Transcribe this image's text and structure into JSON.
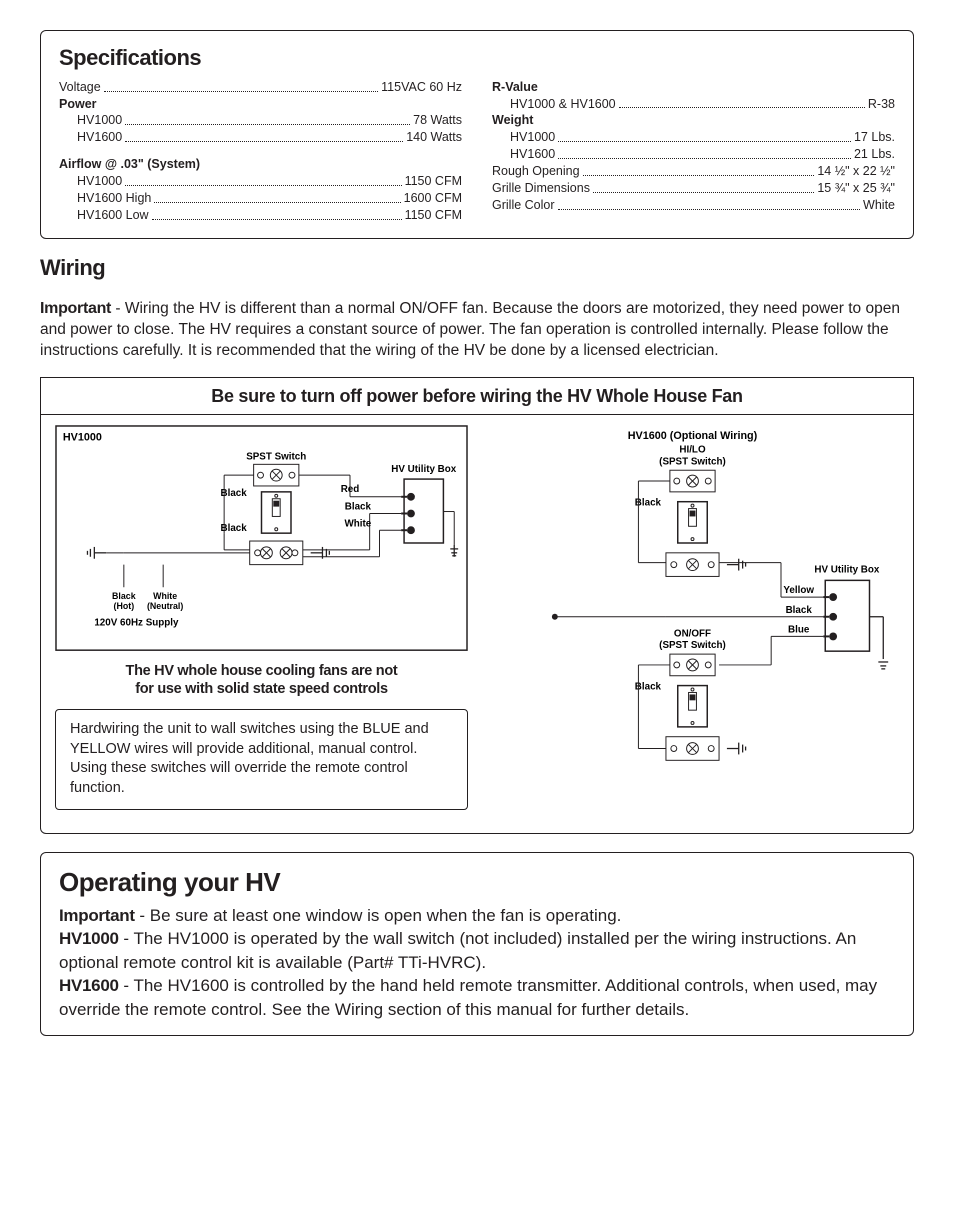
{
  "spec": {
    "title": "Specifications",
    "left": [
      {
        "k": "Voltage",
        "v": "115VAC 60 Hz",
        "bold": false
      },
      {
        "k": "Power",
        "v": "",
        "bold": true,
        "nodots": true
      },
      {
        "k": "HV1000",
        "v": "78 Watts",
        "indent": true
      },
      {
        "k": "HV1600",
        "v": "140 Watts",
        "indent": true
      },
      {
        "k": "",
        "v": "",
        "spacer": true
      },
      {
        "k": "Airflow @ .03\" (System)",
        "v": "",
        "bold": true,
        "nodots": true
      },
      {
        "k": "HV1000",
        "v": "1150 CFM",
        "indent": true
      },
      {
        "k": "HV1600 High",
        "v": "1600 CFM",
        "indent": true
      },
      {
        "k": "HV1600 Low",
        "v": "1150 CFM",
        "indent": true
      }
    ],
    "right": [
      {
        "k": "R-Value",
        "v": "",
        "bold": true,
        "nodots": true
      },
      {
        "k": "HV1000 & HV1600",
        "v": "R-38",
        "indent": true
      },
      {
        "k": "Weight",
        "v": "",
        "bold": true,
        "nodots": true
      },
      {
        "k": "HV1000",
        "v": "17 Lbs.",
        "indent": true
      },
      {
        "k": "HV1600",
        "v": "21 Lbs.",
        "indent": true
      },
      {
        "k": "Rough Opening",
        "v": "14 ½\" x 22 ½\""
      },
      {
        "k": "Grille Dimensions",
        "v": "15 ¾\" x 25 ¾\""
      },
      {
        "k": "Grille Color",
        "v": "White"
      }
    ]
  },
  "wiring": {
    "title": "Wiring",
    "lead": "Important",
    "body": " - Wiring the HV is different than a normal ON/OFF fan. Because the doors are motorized, they need power to open and power to close.   The HV requires a constant source of power. The fan operation is controlled internally. Please follow the instructions carefully.  It is recommended that the wiring of the HV be done by a licensed electrician."
  },
  "banner": "Be sure to turn off power before wiring the HV Whole House Fan",
  "dia1": {
    "title": "HV1000",
    "spst": "SPST Switch",
    "util": "HV Utility Box",
    "red": "Red",
    "black": "Black",
    "white": "White",
    "hot": "Black\n(Hot)",
    "neutral": "White\n(Neutral)",
    "supply": "120V 60Hz Supply",
    "black1": "Black",
    "black2": "Black"
  },
  "dia2": {
    "title": "HV1600 (Optional Wiring)",
    "hilo": "HI/LO\n(SPST Switch)",
    "onoff": "ON/OFF\n(SPST Switch)",
    "util": "HV Utility Box",
    "yellow": "Yellow",
    "black": "Black",
    "blue": "Blue",
    "b1": "Black",
    "b2": "Black"
  },
  "note_nosolid_a": "The HV whole house cooling fans are not",
  "note_nosolid_b": "for use with solid state speed controls",
  "note_hardwire": "Hardwiring the unit to wall switches using the BLUE and YELLOW wires will provide additional, manual control. Using these switches will override the remote control function.",
  "op": {
    "title": "Operating your HV",
    "imp": "Important",
    "imp_t": " - Be sure at least one window is open when the fan is operating.",
    "h1": "HV1000",
    "h1_t": " - The HV1000 is operated by the wall switch (not included) installed per the wiring instructions. An optional remote control kit is available (Part# TTi-HVRC).",
    "h2": "HV1600",
    "h2_t": " - The HV1600 is controlled by the hand held remote transmitter. Additional controls, when used, may override the remote control. See the Wiring section of this manual for further details."
  },
  "colors": {
    "text": "#231f20",
    "bg": "#ffffff"
  }
}
